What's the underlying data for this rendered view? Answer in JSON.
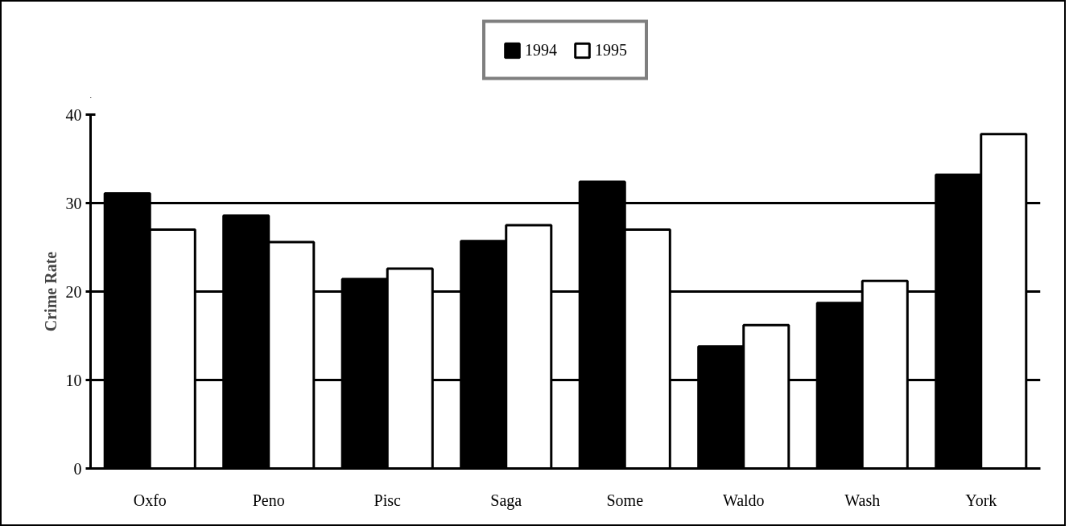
{
  "chart_data": {
    "type": "bar",
    "ylabel": "Crime Rate",
    "categories": [
      "Oxfo",
      "Peno",
      "Pisc",
      "Saga",
      "Some",
      "Waldo",
      "Wash",
      "York"
    ],
    "series": [
      {
        "name": "1994",
        "color": "#000000",
        "values": [
          31.1,
          28.6,
          21.4,
          25.7,
          32.4,
          13.8,
          18.7,
          33.2
        ]
      },
      {
        "name": "1995",
        "color": "#ffffff",
        "values": [
          27.0,
          25.6,
          22.6,
          27.5,
          27.0,
          16.2,
          21.2,
          37.8
        ]
      }
    ],
    "ylim": [
      0,
      40
    ],
    "yticks": [
      0,
      10,
      20,
      30,
      40
    ],
    "grid": "y",
    "legend": "top"
  }
}
